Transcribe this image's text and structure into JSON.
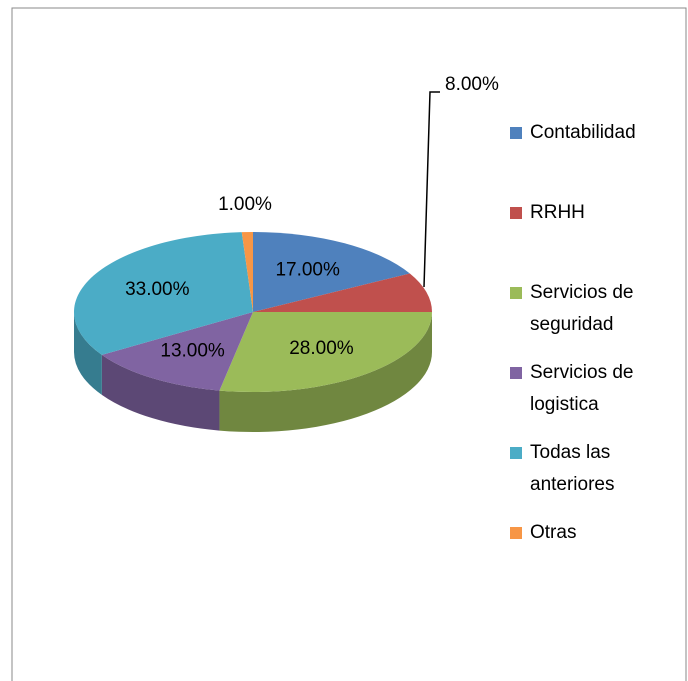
{
  "chart_data": {
    "type": "pie",
    "categories": [
      "Contabilidad",
      "RRHH",
      "Servicios de seguridad",
      "Servicios de logistica",
      "Todas las anteriores",
      "Otras"
    ],
    "values": [
      17,
      8,
      28,
      13,
      33,
      1
    ],
    "value_labels": [
      "17.00%",
      "8.00%",
      "28.00%",
      "13.00%",
      "33.00%",
      "1.00%"
    ],
    "colors": [
      "#4f81bd",
      "#c0504d",
      "#9bbb59",
      "#8064a2",
      "#4bacc6",
      "#f79646"
    ],
    "legend": "right"
  }
}
